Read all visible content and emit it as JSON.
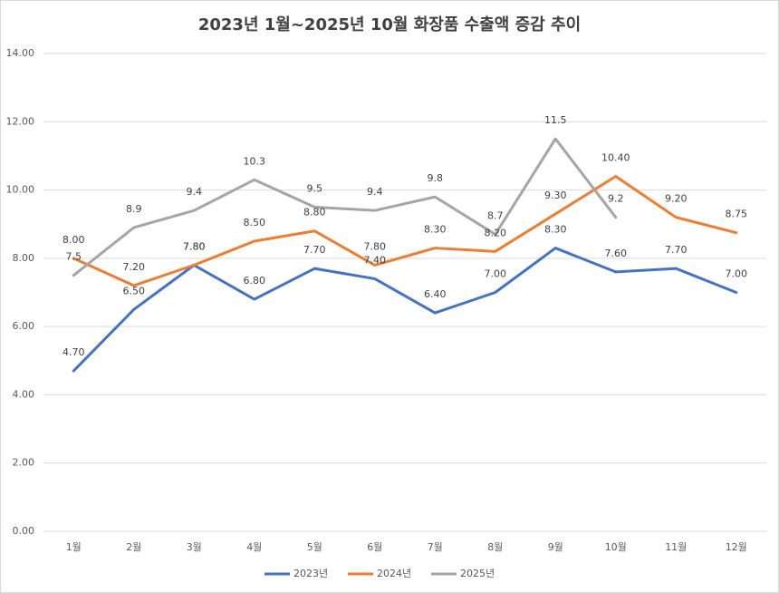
{
  "chart_data": {
    "type": "line",
    "title": "2023년 1월~2025년 10월 화장품 수출액 증감 추이",
    "categories": [
      "1월",
      "2월",
      "3월",
      "4월",
      "5월",
      "6월",
      "7월",
      "8월",
      "9월",
      "10월",
      "11월",
      "12월"
    ],
    "series": [
      {
        "name": "2023년",
        "color": "#4472c4",
        "values": [
          4.7,
          6.5,
          7.8,
          6.8,
          7.7,
          7.4,
          6.4,
          7.0,
          8.3,
          7.6,
          7.7,
          7.0
        ],
        "value_labels": [
          "4.70",
          "6.50",
          "7.80",
          "6.80",
          "7.70",
          "7.40",
          "6.40",
          "7.00",
          "8.30",
          "7.60",
          "7.70",
          "7.00"
        ]
      },
      {
        "name": "2024년",
        "color": "#ed7d31",
        "values": [
          8.0,
          7.2,
          7.8,
          8.5,
          8.8,
          7.8,
          8.3,
          8.2,
          9.3,
          10.4,
          9.2,
          8.75
        ],
        "value_labels": [
          "8.00",
          "7.20",
          "7.80",
          "8.50",
          "8.80",
          "7.80",
          "8.30",
          "8.20",
          "9.30",
          "10.40",
          "9.20",
          "8.75"
        ]
      },
      {
        "name": "2025년",
        "color": "#a5a5a5",
        "values": [
          7.5,
          8.9,
          9.4,
          10.3,
          9.5,
          9.4,
          9.8,
          8.7,
          11.5,
          9.2,
          null,
          null
        ]
      }
    ],
    "ylim": [
      0,
      14
    ],
    "yticks": [
      {
        "value": 0,
        "label": "0.00"
      },
      {
        "value": 2,
        "label": "2.00"
      },
      {
        "value": 4,
        "label": "4.00"
      },
      {
        "value": 6,
        "label": "6.00"
      },
      {
        "value": 8,
        "label": "8.00"
      },
      {
        "value": 10,
        "label": "10.00"
      },
      {
        "value": 12,
        "label": "12.00"
      },
      {
        "value": 14,
        "label": "14.00"
      }
    ],
    "grid": true,
    "legend": "bottom"
  }
}
